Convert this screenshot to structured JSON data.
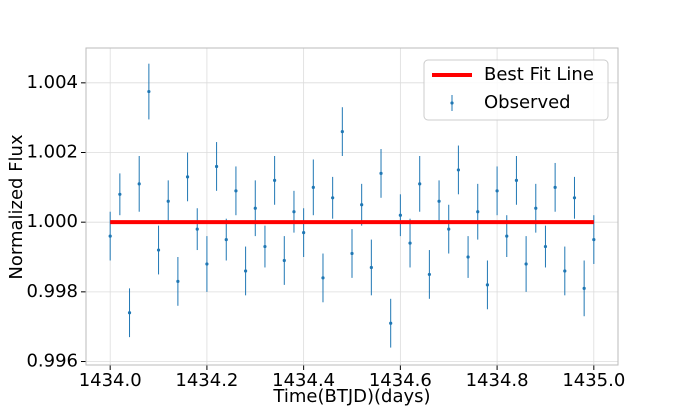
{
  "chart_data": {
    "type": "errorbar",
    "xlabel": "Time(BTJD)(days)",
    "ylabel": "Normalized Flux",
    "xlim": [
      1433.95,
      1435.05
    ],
    "ylim": [
      0.9959,
      1.005
    ],
    "xticks": [
      {
        "value": 1434,
        "label": "1434.0"
      },
      {
        "value": 1434.2,
        "label": "1434.2"
      },
      {
        "value": 1434.4,
        "label": "1434.4"
      },
      {
        "value": 1434.6,
        "label": "1434.6"
      },
      {
        "value": 1434.8,
        "label": "1434.8"
      },
      {
        "value": 1435,
        "label": "1435.0"
      }
    ],
    "yticks": [
      0.996,
      0.998,
      {
        "value": 1,
        "label": "1.000"
      },
      1.002,
      1.004
    ],
    "grid": true,
    "legend": "upper right",
    "series": [
      {
        "name": "Best Fit Line",
        "type": "line",
        "color": "#ff0000",
        "x": [
          1434,
          1435
        ],
        "values": [
          1,
          1
        ]
      },
      {
        "name": "Observed",
        "type": "errorbar",
        "color": "#1f77b4",
        "x": [
          1434,
          1434.02,
          1434.04,
          1434.06,
          1434.08,
          1434.1,
          1434.12,
          1434.14,
          1434.16,
          1434.18,
          1434.2,
          1434.22,
          1434.24,
          1434.26,
          1434.28,
          1434.3,
          1434.32,
          1434.34,
          1434.36,
          1434.38,
          1434.4,
          1434.42,
          1434.44,
          1434.46,
          1434.48,
          1434.5,
          1434.52,
          1434.54,
          1434.56,
          1434.58,
          1434.6,
          1434.62,
          1434.64,
          1434.66,
          1434.68,
          1434.7,
          1434.72,
          1434.74,
          1434.76,
          1434.78,
          1434.8,
          1434.82,
          1434.84,
          1434.86,
          1434.88,
          1434.9,
          1434.92,
          1434.94,
          1434.96,
          1434.98,
          1435
        ],
        "values": [
          0.9996,
          1.0008,
          0.9974,
          1.0011,
          1.00375,
          0.9992,
          1.0006,
          0.9983,
          1.0013,
          0.9998,
          0.9988,
          1.0016,
          0.9995,
          1.0009,
          0.9986,
          1.0004,
          0.9993,
          1.0012,
          0.9989,
          1.0003,
          0.9997,
          1.001,
          0.9984,
          1.0007,
          1.0026,
          0.9991,
          1.0005,
          0.9987,
          1.0014,
          0.9971,
          1.0002,
          0.9994,
          1.0011,
          0.9985,
          1.0006,
          0.9998,
          1.0015,
          0.999,
          1.0003,
          0.9982,
          1.0009,
          0.9996,
          1.0012,
          0.9988,
          1.0004,
          0.9993,
          1.001,
          0.9986,
          1.0007,
          0.9981,
          0.9995
        ],
        "errors": [
          0.0007,
          0.0006,
          0.0007,
          0.0008,
          0.0008,
          0.0007,
          0.0006,
          0.0007,
          0.0007,
          0.0006,
          0.0008,
          0.0007,
          0.0006,
          0.0007,
          0.0007,
          0.0008,
          0.0006,
          0.0007,
          0.0007,
          0.0006,
          0.0007,
          0.0008,
          0.0007,
          0.0006,
          0.0007,
          0.0007,
          0.0006,
          0.0008,
          0.0007,
          0.0007,
          0.0006,
          0.0007,
          0.0008,
          0.0007,
          0.0006,
          0.0007,
          0.0007,
          0.0006,
          0.0008,
          0.0007,
          0.0007,
          0.0006,
          0.0007,
          0.0008,
          0.0007,
          0.0006,
          0.0007,
          0.0007,
          0.0006,
          0.0008,
          0.0007
        ]
      }
    ]
  }
}
